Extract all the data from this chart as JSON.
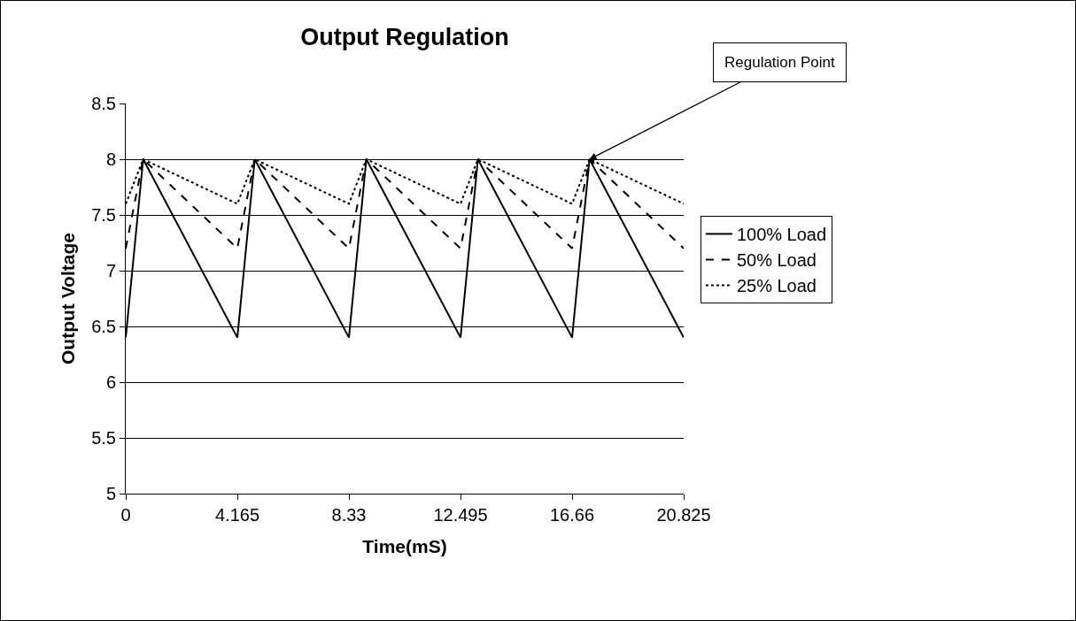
{
  "chart_data": {
    "type": "line",
    "title": "Output Regulation",
    "xlabel": "Time(mS)",
    "ylabel": "Output Voltage",
    "xlim": [
      0,
      20.825
    ],
    "xticks": [
      0,
      4.165,
      8.33,
      12.495,
      16.66,
      20.825
    ],
    "ylim": [
      5,
      8.5
    ],
    "yticks": [
      5,
      5.5,
      6,
      6.5,
      7,
      7.5,
      8,
      8.5
    ],
    "x": [
      0,
      0.65,
      4.165,
      4.815,
      8.33,
      8.98,
      12.495,
      13.145,
      16.66,
      17.31,
      20.825
    ],
    "series": [
      {
        "name": "100% Load",
        "color": "#000000",
        "line_style": "solid",
        "values": [
          6.4,
          8,
          6.4,
          8,
          6.4,
          8,
          6.4,
          8,
          6.4,
          8,
          6.4
        ]
      },
      {
        "name": "50% Load",
        "color": "#000000",
        "line_style": "dashed",
        "values": [
          7.2,
          8,
          7.2,
          8,
          7.2,
          8,
          7.2,
          8,
          7.2,
          8,
          7.2
        ]
      },
      {
        "name": "25% Load",
        "color": "#000000",
        "line_style": "dotted",
        "values": [
          7.6,
          8,
          7.6,
          8,
          7.6,
          8,
          7.6,
          8,
          7.6,
          8,
          7.6
        ]
      }
    ],
    "annotations": [
      {
        "text": "Regulation Point",
        "x": 17.31,
        "y": 8
      }
    ],
    "grid": "y",
    "legend": "right"
  }
}
